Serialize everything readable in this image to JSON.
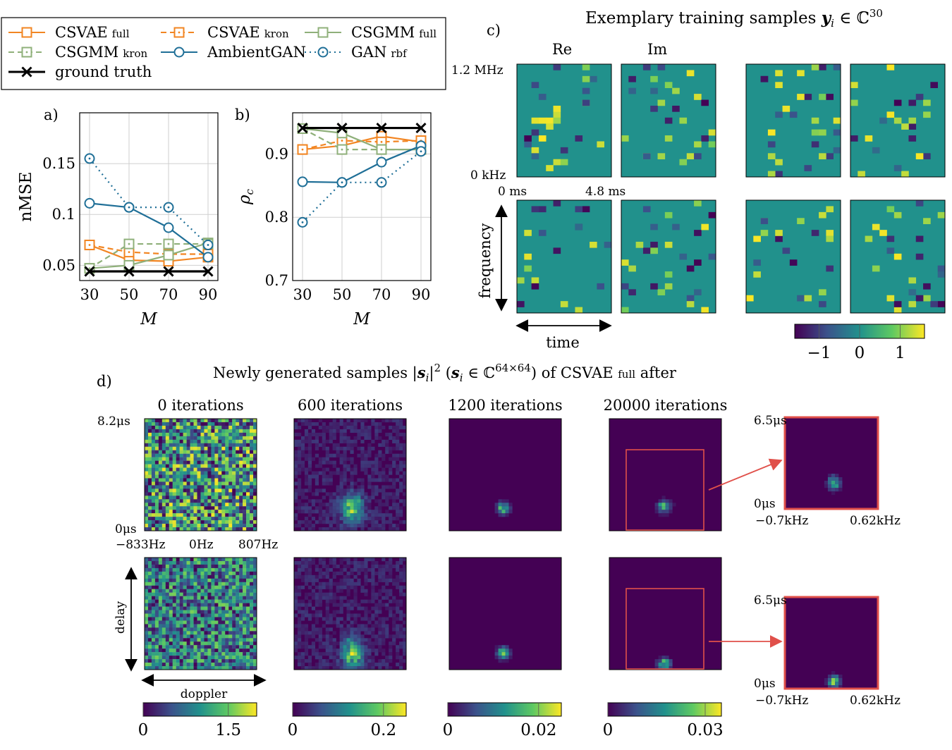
{
  "legend": {
    "entries": [
      {
        "name": "CSVAE",
        "sub": "full",
        "color": "#f28522",
        "dash": "solid",
        "marker": "square"
      },
      {
        "name": "CSVAE",
        "sub": "kron",
        "color": "#f28522",
        "dash": "dashed",
        "marker": "square-dot"
      },
      {
        "name": "CSGMM",
        "sub": "full",
        "color": "#8fb07a",
        "dash": "solid",
        "marker": "square"
      },
      {
        "name": "CSGMM",
        "sub": "kron",
        "color": "#8fb07a",
        "dash": "dashed",
        "marker": "square-dot"
      },
      {
        "name": "AmbientGAN",
        "sub": "",
        "color": "#1f6f97",
        "dash": "solid",
        "marker": "circle"
      },
      {
        "name": "GAN",
        "sub": "rbf",
        "color": "#1f6f97",
        "dash": "dotted",
        "marker": "circle-dot"
      },
      {
        "name": "ground truth",
        "sub": "",
        "color": "#000000",
        "dash": "solid",
        "marker": "x"
      }
    ]
  },
  "chart_data": [
    {
      "type": "line",
      "panel": "a)",
      "xlabel": "M",
      "ylabel": "nMSE",
      "x": [
        30,
        50,
        70,
        90
      ],
      "xticks": [
        "30",
        "50",
        "70",
        "90"
      ],
      "yticks": [
        {
          "v": 0.05,
          "t": "0.05"
        },
        {
          "v": 0.1,
          "t": "0.1"
        },
        {
          "v": 0.15,
          "t": "0.15"
        }
      ],
      "ylim": [
        0.035,
        0.2
      ],
      "grid": true,
      "series": [
        {
          "name": "CSVAE full",
          "values": [
            0.07,
            0.055,
            0.054,
            0.058
          ]
        },
        {
          "name": "CSVAE kron",
          "values": [
            0.07,
            0.063,
            0.061,
            0.061
          ]
        },
        {
          "name": "CSGMM full",
          "values": [
            0.047,
            0.05,
            0.06,
            0.072
          ]
        },
        {
          "name": "CSGMM kron",
          "values": [
            0.047,
            0.071,
            0.071,
            0.071
          ]
        },
        {
          "name": "AmbientGAN",
          "values": [
            0.111,
            0.107,
            0.087,
            0.058
          ]
        },
        {
          "name": "GAN rbf",
          "values": [
            0.155,
            0.107,
            0.107,
            0.07
          ]
        },
        {
          "name": "ground truth",
          "values": [
            0.044,
            0.044,
            0.044,
            0.044
          ]
        }
      ]
    },
    {
      "type": "line",
      "panel": "b)",
      "xlabel": "M",
      "ylabel": "ρc",
      "x": [
        30,
        50,
        70,
        90
      ],
      "xticks": [
        "30",
        "50",
        "70",
        "90"
      ],
      "yticks": [
        {
          "v": 0.7,
          "t": "0.7"
        },
        {
          "v": 0.8,
          "t": "0.8"
        },
        {
          "v": 0.9,
          "t": "0.9"
        }
      ],
      "ylim": [
        0.7,
        0.965
      ],
      "grid": true,
      "series": [
        {
          "name": "CSVAE full",
          "values": [
            0.907,
            0.913,
            0.928,
            0.919
          ]
        },
        {
          "name": "CSVAE kron",
          "values": [
            0.907,
            0.921,
            0.919,
            0.921
          ]
        },
        {
          "name": "CSGMM full",
          "values": [
            0.94,
            0.933,
            0.907,
            0.907
          ]
        },
        {
          "name": "CSGMM kron",
          "values": [
            0.94,
            0.907,
            0.907,
            0.907
          ]
        },
        {
          "name": "AmbientGAN",
          "values": [
            0.856,
            0.855,
            0.887,
            0.913
          ]
        },
        {
          "name": "GAN rbf",
          "values": [
            0.792,
            0.855,
            0.855,
            0.904
          ]
        },
        {
          "name": "ground truth",
          "values": [
            0.941,
            0.941,
            0.941,
            0.941
          ]
        }
      ]
    },
    {
      "type": "heatmap",
      "panel": "c)",
      "title": "Exemplary training samples",
      "col_labels": [
        "Re",
        "Im"
      ],
      "axis_labels": {
        "y_top": "1.2 MHz",
        "y_bottom": "0 kHz",
        "x_left": "0 ms",
        "x_right": "4.8 ms",
        "y_name": "frequency",
        "x_name": "time"
      },
      "colorbar": {
        "ticks": [
          "−1",
          "0",
          "1"
        ],
        "range": [
          -1.6,
          1.6
        ]
      }
    },
    {
      "type": "heatmap",
      "panel": "d)",
      "title_pre": "Newly generated samples",
      "title_post": "of CSVAE",
      "title_sub": "full",
      "title_end": "after",
      "columns": [
        {
          "label": "0 iterations",
          "cbar_ticks": [
            "0",
            "1.5"
          ],
          "cbar_max": 2.0
        },
        {
          "label": "600 iterations",
          "cbar_ticks": [
            "0",
            "0.2"
          ],
          "cbar_max": 0.25
        },
        {
          "label": "1200 iterations",
          "cbar_ticks": [
            "0",
            "0.02"
          ],
          "cbar_max": 0.025
        },
        {
          "label": "20000 iterations",
          "cbar_ticks": [
            "0",
            "0.03"
          ],
          "cbar_max": 0.035
        }
      ],
      "axis_labels": {
        "y_top": "8.2μs",
        "y_bottom": "0μs",
        "x_left": "−833Hz",
        "x_mid": "0Hz",
        "x_right": "807Hz",
        "y_name": "delay",
        "x_name": "doppler"
      },
      "zoom": {
        "y_top": "6.5μs",
        "y_bottom": "0μs",
        "x_left": "−0.7kHz",
        "x_right": "0.62kHz"
      }
    }
  ]
}
